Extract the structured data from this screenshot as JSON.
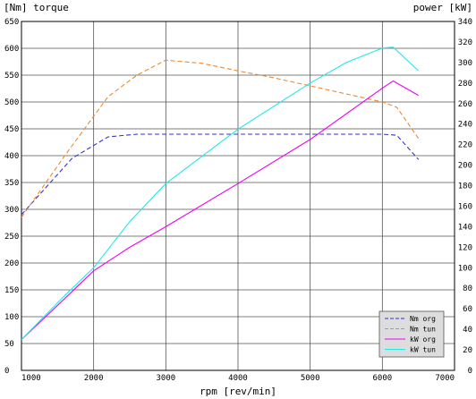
{
  "chart_data": {
    "type": "line",
    "y_left_label": "[Nm] torque",
    "y_right_label": "power [kW]",
    "xlabel": "rpm [rev/min]",
    "xlim": [
      1000,
      7000
    ],
    "ylim_left": [
      0,
      650
    ],
    "ylim_right": [
      0,
      340
    ],
    "x_ticks": [
      1000,
      2000,
      3000,
      4000,
      5000,
      6000,
      7000
    ],
    "y_left_ticks": [
      0,
      50,
      100,
      150,
      200,
      250,
      300,
      350,
      400,
      450,
      500,
      550,
      600,
      650
    ],
    "y_right_ticks": [
      0,
      20,
      40,
      60,
      80,
      100,
      120,
      140,
      160,
      180,
      200,
      220,
      240,
      260,
      280,
      300,
      320,
      340
    ],
    "grid": true,
    "legend_position": "bottom-right",
    "series": [
      {
        "name": "Nm org",
        "axis": "left",
        "color": "#3333cc",
        "dash": true,
        "points": [
          [
            1000,
            290
          ],
          [
            1700,
            395
          ],
          [
            2200,
            435
          ],
          [
            2600,
            440
          ],
          [
            3000,
            440
          ],
          [
            4000,
            440
          ],
          [
            5000,
            440
          ],
          [
            6000,
            440
          ],
          [
            6200,
            438
          ],
          [
            6500,
            393
          ]
        ]
      },
      {
        "name": "Nm tun",
        "axis": "left",
        "color": "#ee8833",
        "dash": true,
        "points": [
          [
            1000,
            285
          ],
          [
            1600,
            400
          ],
          [
            2200,
            510
          ],
          [
            2600,
            550
          ],
          [
            3000,
            578
          ],
          [
            3500,
            572
          ],
          [
            4000,
            558
          ],
          [
            4500,
            545
          ],
          [
            5000,
            530
          ],
          [
            5500,
            515
          ],
          [
            6000,
            500
          ],
          [
            6200,
            490
          ],
          [
            6500,
            432
          ]
        ]
      },
      {
        "name": "kW org",
        "axis": "right",
        "color": "#ee00ee",
        "dash": false,
        "points": [
          [
            1000,
            30
          ],
          [
            1600,
            70
          ],
          [
            2000,
            97
          ],
          [
            2500,
            120
          ],
          [
            3000,
            140
          ],
          [
            4000,
            182
          ],
          [
            5000,
            225
          ],
          [
            6000,
            275
          ],
          [
            6150,
            282
          ],
          [
            6500,
            268
          ]
        ]
      },
      {
        "name": "kW tun",
        "axis": "right",
        "color": "#22e8e8",
        "dash": false,
        "points": [
          [
            1000,
            30
          ],
          [
            1600,
            73
          ],
          [
            2000,
            100
          ],
          [
            2500,
            145
          ],
          [
            3000,
            182
          ],
          [
            4000,
            235
          ],
          [
            5000,
            280
          ],
          [
            5500,
            300
          ],
          [
            6000,
            314
          ],
          [
            6150,
            315
          ],
          [
            6500,
            292
          ]
        ]
      }
    ]
  }
}
